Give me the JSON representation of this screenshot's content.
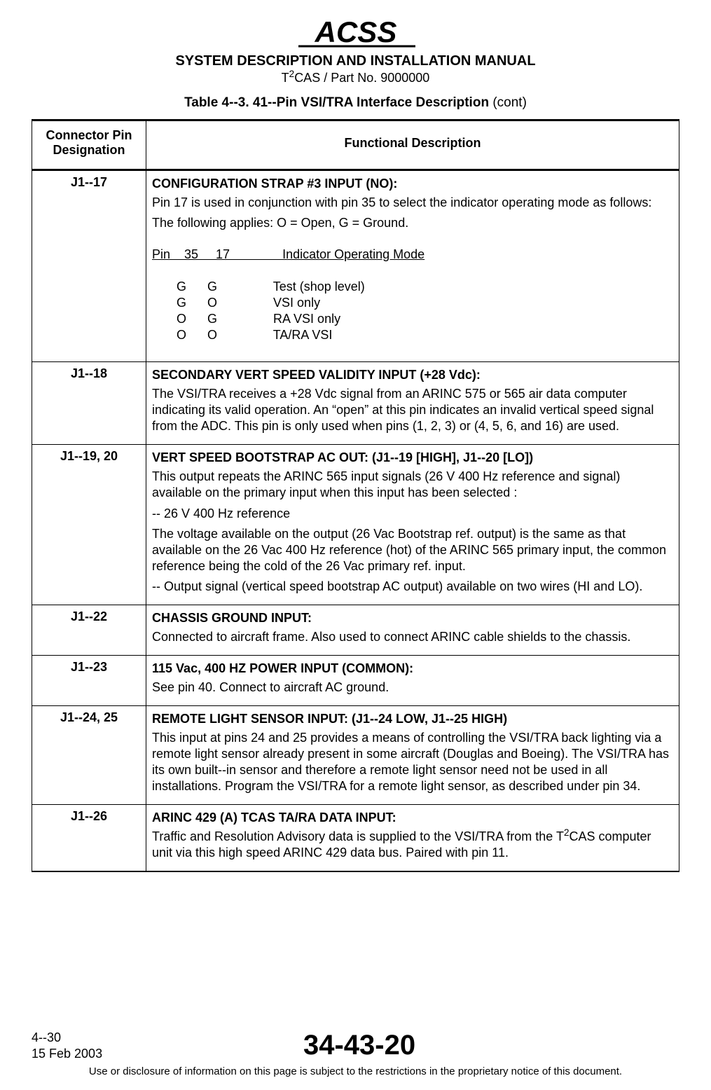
{
  "header": {
    "logo_text": "ACSS",
    "manual_title": "SYSTEM DESCRIPTION AND INSTALLATION MANUAL",
    "part_line_prefix": "T",
    "part_line_sup": "2",
    "part_line_rest": "CAS / Part No. 9000000"
  },
  "table_title_bold": "Table 4--3.  41--Pin VSI/TRA Interface Description",
  "table_title_cont": " (cont)",
  "columns": {
    "pin": "Connector Pin Designation",
    "desc": "Functional Description"
  },
  "rows": [
    {
      "pin": "J1--17",
      "title": "CONFIGURATION STRAP #3 INPUT (NO):",
      "paras": [
        "Pin 17 is used in conjunction with pin 35 to select the indicator operating mode as follows:",
        "The following applies: O = Open, G = Ground."
      ],
      "modes_header": {
        "c1": "Pin",
        "c2": "35",
        "c3": "17",
        "c4": "Indicator Operating Mode"
      },
      "modes": [
        {
          "c2": "G",
          "c3": "G",
          "c4": "Test (shop level)"
        },
        {
          "c2": "G",
          "c3": "O",
          "c4": "VSI only"
        },
        {
          "c2": "O",
          "c3": "G",
          "c4": "RA VSI only"
        },
        {
          "c2": "O",
          "c3": "O",
          "c4": "TA/RA VSI"
        }
      ]
    },
    {
      "pin": "J1--18",
      "title": "SECONDARY VERT SPEED VALIDITY INPUT (+28 Vdc):",
      "paras": [
        "The VSI/TRA receives a +28 Vdc signal from an ARINC 575 or 565 air data computer indicating its valid operation. An “open” at this pin indicates an invalid vertical speed signal from the ADC.  This pin is only used when pins (1, 2, 3) or (4, 5, 6, and 16) are used."
      ]
    },
    {
      "pin": "J1--19, 20",
      "title": "VERT SPEED BOOTSTRAP AC OUT:  (J1--19 [HIGH], J1--20 [LO])",
      "paras": [
        "This output repeats the ARINC 565 input signals (26 V 400 Hz reference and signal) available on the primary input when this input has been selected :",
        "-- 26 V 400 Hz reference",
        "The voltage available on the output (26 Vac Bootstrap ref. output) is the same as that available on the 26 Vac 400 Hz reference (hot) of the ARINC 565 primary input, the common reference being the cold of the 26 Vac primary ref. input.",
        "-- Output signal (vertical speed bootstrap AC output) available on two wires (HI and LO)."
      ]
    },
    {
      "pin": "J1--22",
      "title": "CHASSIS GROUND INPUT:",
      "paras": [
        "Connected to aircraft frame.  Also used to connect ARINC cable shields to the chassis."
      ]
    },
    {
      "pin": "J1--23",
      "title": "115 Vac, 400 HZ POWER INPUT (COMMON):",
      "paras": [
        "See pin 40.  Connect to aircraft AC ground."
      ]
    },
    {
      "pin": "J1--24, 25",
      "title": "REMOTE LIGHT SENSOR INPUT:  (J1--24 LOW, J1--25 HIGH)",
      "paras": [
        "This input at pins 24 and 25 provides a means of controlling the VSI/TRA back lighting via a remote light sensor already present in some aircraft (Douglas and Boeing). The VSI/TRA has its own built--in sensor and therefore a remote light sensor need not be used in all installations.  Program the VSI/TRA for a remote light sensor, as described under pin 34."
      ]
    },
    {
      "pin": "J1--26",
      "title": "ARINC 429 (A) TCAS TA/RA DATA INPUT:",
      "paras_rich": [
        {
          "pre": "Traffic and Resolution Advisory data is supplied to the VSI/TRA from the T",
          "sup": "2",
          "post": "CAS computer unit via this high speed ARINC 429 data bus. Paired with pin 11."
        }
      ]
    }
  ],
  "footer": {
    "page_num": "4--30",
    "date": "15 Feb 2003",
    "doc_num": "34-43-20",
    "disclaimer": "Use or disclosure of information on this page is subject to the restrictions in the proprietary notice of this document."
  }
}
